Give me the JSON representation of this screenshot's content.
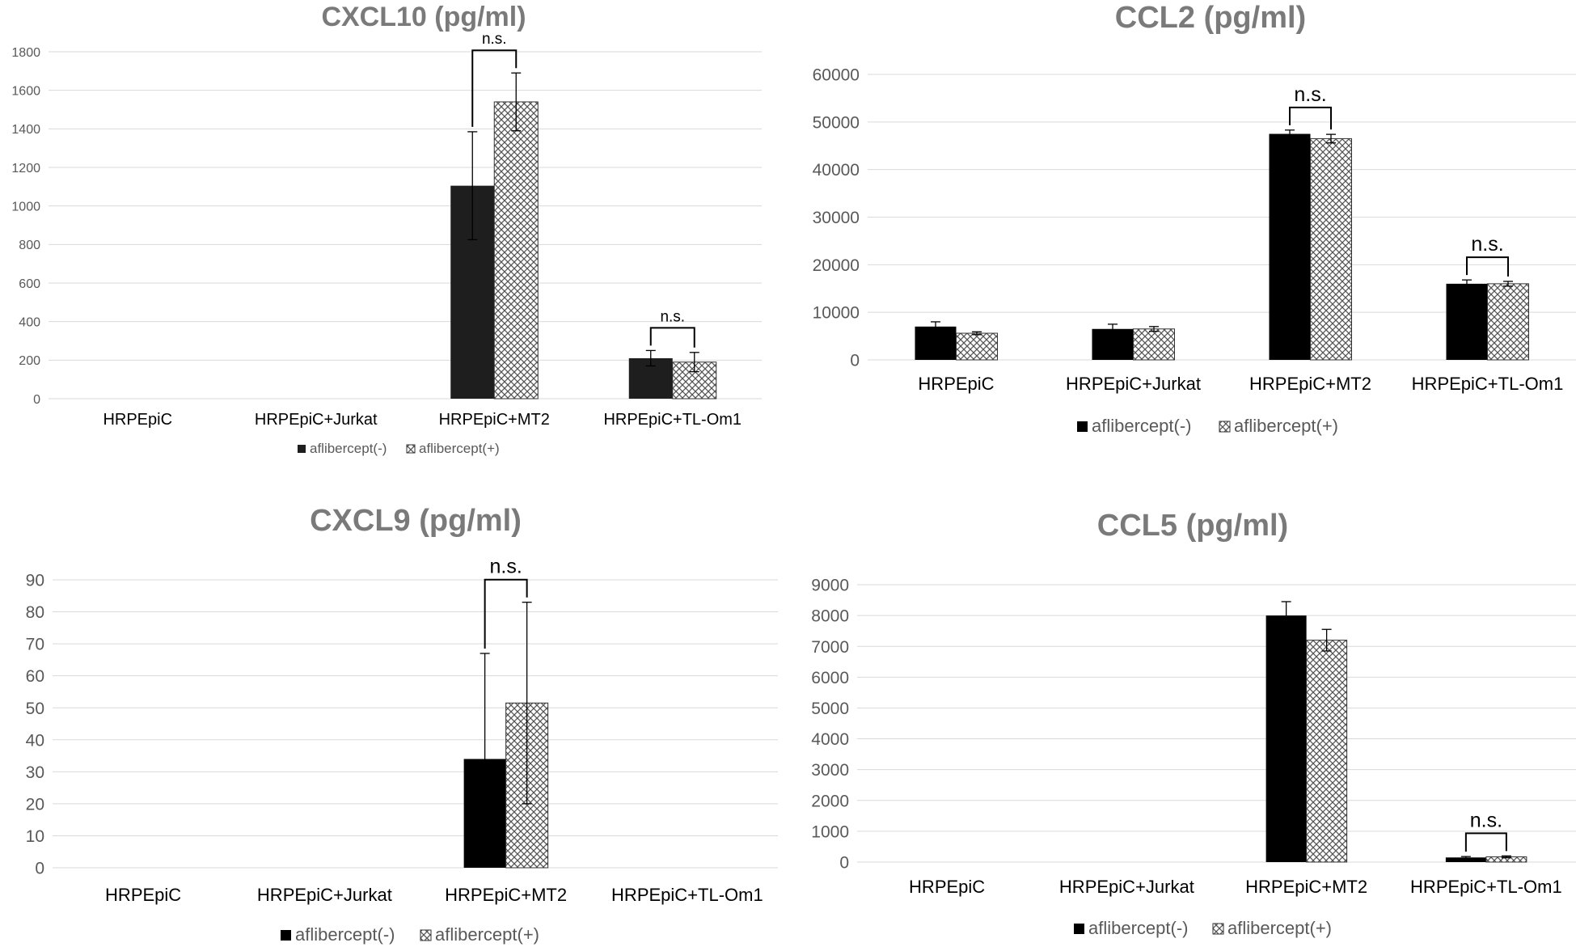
{
  "colors": {
    "neg": "#000000",
    "neg_dark": "#1e1e1e",
    "pos_pattern_bg": "#ffffff",
    "pos_pattern_ink": "#555555",
    "grid": "#d9d9d9",
    "title": "#7a7a7a",
    "tick": "#595959"
  },
  "chart_data": [
    {
      "type": "bar",
      "title": "CXCL10 (pg/ml)",
      "categories": [
        "HRPEpiC",
        "HRPEpiC+Jurkat",
        "HRPEpiC+MT2",
        "HRPEpiC+TL-Om1"
      ],
      "ylim": [
        0,
        1800
      ],
      "yticks": [
        0,
        200,
        400,
        600,
        800,
        1000,
        1200,
        1400,
        1600,
        1800
      ],
      "grid": true,
      "legend_position": "bottom",
      "series": [
        {
          "name": "aflibercept(-)",
          "values": [
            0,
            0,
            1105,
            210
          ],
          "errors": [
            0,
            0,
            280,
            40
          ]
        },
        {
          "name": "aflibercept(+)",
          "values": [
            0,
            0,
            1540,
            190
          ],
          "errors": [
            0,
            0,
            150,
            50
          ]
        }
      ],
      "annotations": [
        {
          "category_index": 2,
          "text": "n.s."
        },
        {
          "category_index": 3,
          "text": "n.s."
        }
      ]
    },
    {
      "type": "bar",
      "title": "CCL2 (pg/ml)",
      "categories": [
        "HRPEpiC",
        "HRPEpiC+Jurkat",
        "HRPEpiC+MT2",
        "HRPEpiC+TL-Om1"
      ],
      "ylim": [
        0,
        60000
      ],
      "yticks": [
        0,
        10000,
        20000,
        30000,
        40000,
        50000,
        60000
      ],
      "grid": true,
      "legend_position": "bottom",
      "series": [
        {
          "name": "aflibercept(-)",
          "values": [
            7000,
            6500,
            47500,
            16000
          ],
          "errors": [
            1000,
            1000,
            800,
            800
          ]
        },
        {
          "name": "aflibercept(+)",
          "values": [
            5600,
            6500,
            46500,
            16000
          ],
          "errors": [
            300,
            500,
            900,
            500
          ]
        }
      ],
      "annotations": [
        {
          "category_index": 2,
          "text": "n.s."
        },
        {
          "category_index": 3,
          "text": "n.s."
        }
      ]
    },
    {
      "type": "bar",
      "title": "CXCL9 (pg/ml)",
      "categories": [
        "HRPEpiC",
        "HRPEpiC+Jurkat",
        "HRPEpiC+MT2",
        "HRPEpiC+TL-Om1"
      ],
      "ylim": [
        0,
        90
      ],
      "yticks": [
        0,
        10,
        20,
        30,
        40,
        50,
        60,
        70,
        80,
        90
      ],
      "grid": true,
      "legend_position": "bottom",
      "series": [
        {
          "name": "aflibercept(-)",
          "values": [
            0,
            0,
            34,
            0
          ],
          "errors": [
            0,
            0,
            33,
            0
          ]
        },
        {
          "name": "aflibercept(+)",
          "values": [
            0,
            0,
            51.5,
            0
          ],
          "errors": [
            0,
            0,
            31.5,
            0
          ]
        }
      ],
      "annotations": [
        {
          "category_index": 2,
          "text": "n.s."
        }
      ]
    },
    {
      "type": "bar",
      "title": "CCL5 (pg/ml)",
      "categories": [
        "HRPEpiC",
        "HRPEpiC+Jurkat",
        "HRPEpiC+MT2",
        "HRPEpiC+TL-Om1"
      ],
      "ylim": [
        0,
        9000
      ],
      "yticks": [
        0,
        1000,
        2000,
        3000,
        4000,
        5000,
        6000,
        7000,
        8000,
        9000
      ],
      "grid": true,
      "legend_position": "bottom",
      "series": [
        {
          "name": "aflibercept(-)",
          "values": [
            0,
            0,
            8000,
            150
          ],
          "errors": [
            0,
            0,
            450,
            30
          ]
        },
        {
          "name": "aflibercept(+)",
          "values": [
            0,
            0,
            7200,
            170
          ],
          "errors": [
            0,
            0,
            350,
            30
          ]
        }
      ],
      "annotations": [
        {
          "category_index": 3,
          "text": "n.s."
        }
      ]
    }
  ]
}
